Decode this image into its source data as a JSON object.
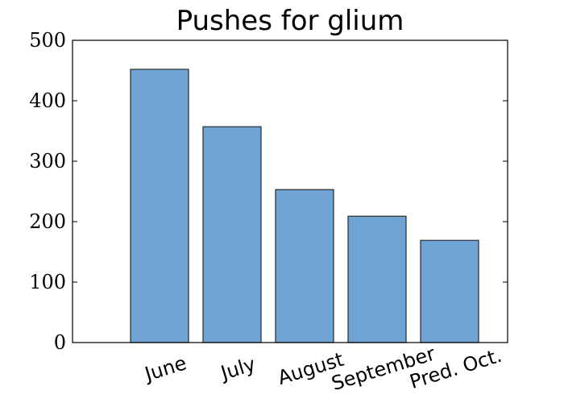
{
  "chart_data": {
    "type": "bar",
    "title": "Pushes for glium",
    "xlabel": "",
    "ylabel": "",
    "categories": [
      "June",
      "July",
      "August",
      "September",
      "Pred. Oct."
    ],
    "values": [
      452,
      357,
      253,
      209,
      169
    ],
    "ylim": [
      0,
      500
    ],
    "yticks": [
      0,
      100,
      200,
      300,
      400,
      500
    ],
    "bar_color": "#6fa4d4",
    "bar_edge_color": "#2a2a2a",
    "grid": false,
    "legend": "none",
    "xtick_rotation_deg": -17
  }
}
